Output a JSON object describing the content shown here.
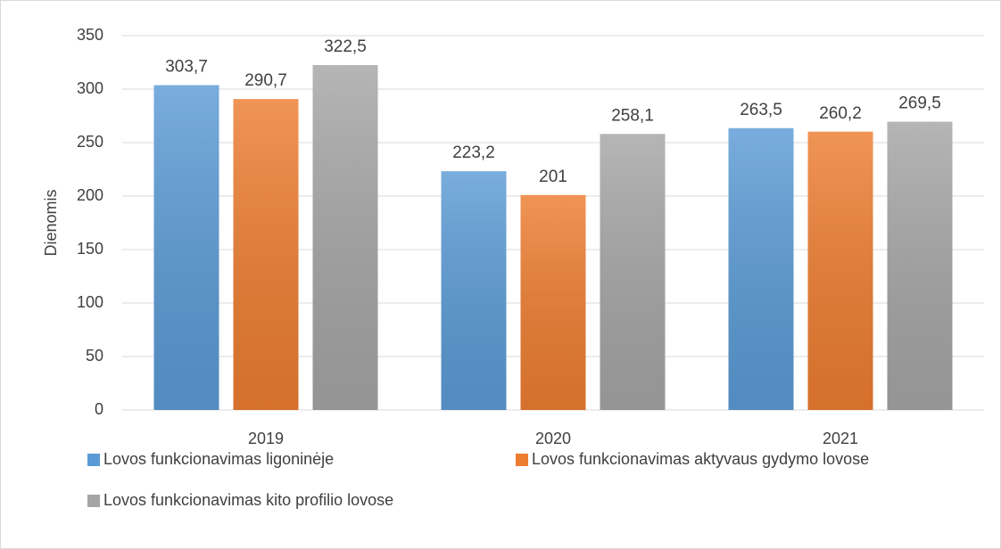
{
  "chart_data": {
    "type": "bar",
    "y_label": "Dienomis",
    "categories": [
      "2019",
      "2020",
      "2021"
    ],
    "series": [
      {
        "name": "Lovos funkcionavimas ligoninėje",
        "color": "#5b9bd5",
        "values": [
          303.7,
          223.2,
          263.5
        ],
        "value_labels": [
          "303,7",
          "223,2",
          "263,5"
        ]
      },
      {
        "name": "Lovos funkcionavimas aktyvaus gydymo lovose",
        "color": "#ed7d31",
        "values": [
          290.7,
          201,
          260.2
        ],
        "value_labels": [
          "290,7",
          "201",
          "260,2"
        ]
      },
      {
        "name": "Lovos funkcionavimas kito profilio lovose",
        "color": "#a5a5a5",
        "values": [
          322.5,
          258.1,
          269.5
        ],
        "value_labels": [
          "322,5",
          "258,1",
          "269,5"
        ]
      }
    ],
    "ylim": [
      0,
      350
    ],
    "yticks": [
      0,
      50,
      100,
      150,
      200,
      250,
      300,
      350
    ],
    "grid": true,
    "legend": "bottom"
  }
}
